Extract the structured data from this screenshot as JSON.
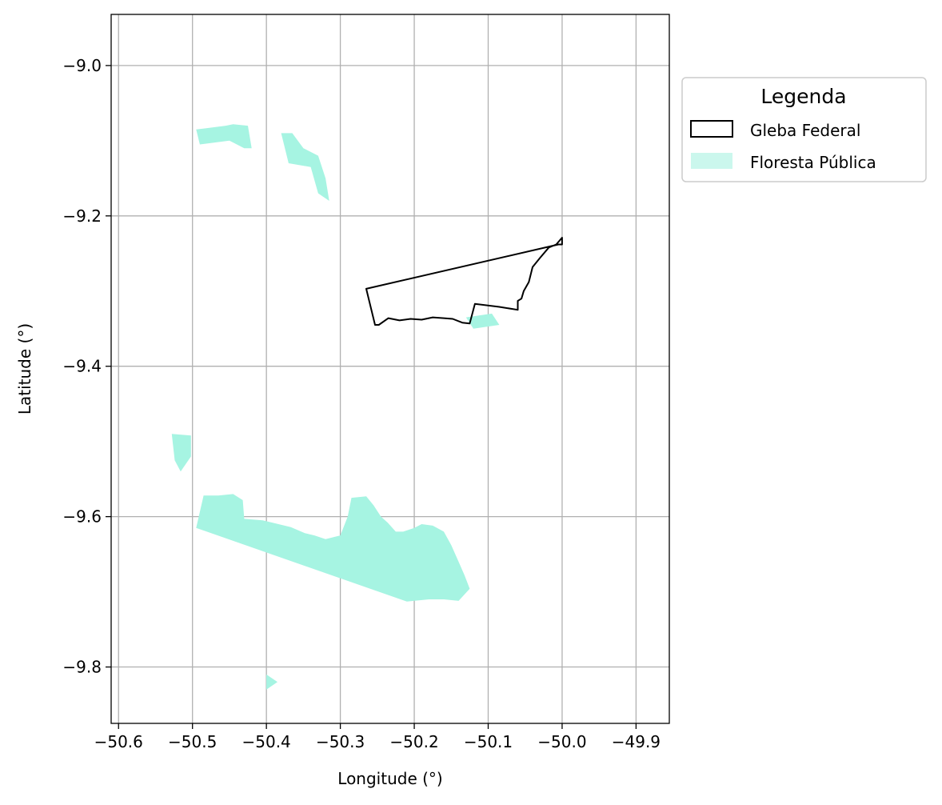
{
  "chart_data": {
    "type": "map",
    "xlabel": "Longitude (°)",
    "ylabel": "Latitude (°)",
    "xlim": [
      -50.61,
      -49.855
    ],
    "ylim": [
      -9.875,
      -8.932
    ],
    "xticks": [
      -50.6,
      -50.5,
      -50.4,
      -50.3,
      -50.2,
      -50.1,
      -50.0,
      -49.9
    ],
    "xtick_labels": [
      "−50.6",
      "−50.5",
      "−50.4",
      "−50.3",
      "−50.2",
      "−50.1",
      "−50.0",
      "−49.9"
    ],
    "yticks": [
      -9.0,
      -9.2,
      -9.4,
      -9.6,
      -9.8
    ],
    "ytick_labels": [
      "−9.0",
      "−9.2",
      "−9.4",
      "−9.6",
      "−9.8"
    ],
    "grid": true,
    "legend": {
      "title": "Legenda",
      "placement": "outside-upper-right",
      "entries": [
        {
          "label": "Gleba Federal",
          "style": "outline",
          "color": "#000000"
        },
        {
          "label": "Floresta Pública",
          "style": "fill",
          "color": "#a6f4e2"
        }
      ]
    },
    "gleba_federal": [
      [
        -50.265,
        -9.297
      ],
      [
        -50.005,
        -9.238
      ],
      [
        -50.0,
        -9.238
      ],
      [
        -50.0,
        -9.229
      ],
      [
        -50.008,
        -9.238
      ],
      [
        -50.018,
        -9.242
      ],
      [
        -50.03,
        -9.256
      ],
      [
        -50.04,
        -9.268
      ],
      [
        -50.045,
        -9.288
      ],
      [
        -50.052,
        -9.3
      ],
      [
        -50.055,
        -9.31
      ],
      [
        -50.06,
        -9.313
      ],
      [
        -50.06,
        -9.325
      ],
      [
        -50.085,
        -9.321
      ],
      [
        -50.118,
        -9.317
      ],
      [
        -50.125,
        -9.343
      ],
      [
        -50.135,
        -9.342
      ],
      [
        -50.148,
        -9.337
      ],
      [
        -50.16,
        -9.336
      ],
      [
        -50.175,
        -9.335
      ],
      [
        -50.19,
        -9.338
      ],
      [
        -50.205,
        -9.337
      ],
      [
        -50.22,
        -9.339
      ],
      [
        -50.235,
        -9.336
      ],
      [
        -50.248,
        -9.345
      ],
      [
        -50.253,
        -9.345
      ],
      [
        -50.265,
        -9.297
      ]
    ],
    "floresta_publica": [
      {
        "name": "large-south-block",
        "coords": [
          [
            -50.495,
            -9.615
          ],
          [
            -50.485,
            -9.572
          ],
          [
            -50.465,
            -9.572
          ],
          [
            -50.445,
            -9.57
          ],
          [
            -50.432,
            -9.578
          ],
          [
            -50.43,
            -9.603
          ],
          [
            -50.405,
            -9.605
          ],
          [
            -50.392,
            -9.608
          ],
          [
            -50.367,
            -9.614
          ],
          [
            -50.348,
            -9.622
          ],
          [
            -50.335,
            -9.625
          ],
          [
            -50.32,
            -9.63
          ],
          [
            -50.3,
            -9.625
          ],
          [
            -50.29,
            -9.6
          ],
          [
            -50.285,
            -9.575
          ],
          [
            -50.265,
            -9.573
          ],
          [
            -50.255,
            -9.585
          ],
          [
            -50.245,
            -9.6
          ],
          [
            -50.236,
            -9.608
          ],
          [
            -50.225,
            -9.62
          ],
          [
            -50.215,
            -9.62
          ],
          [
            -50.2,
            -9.615
          ],
          [
            -50.19,
            -9.61
          ],
          [
            -50.175,
            -9.612
          ],
          [
            -50.16,
            -9.62
          ],
          [
            -50.15,
            -9.638
          ],
          [
            -50.14,
            -9.66
          ],
          [
            -50.132,
            -9.678
          ],
          [
            -50.125,
            -9.696
          ],
          [
            -50.14,
            -9.712
          ],
          [
            -50.16,
            -9.71
          ],
          [
            -50.18,
            -9.71
          ],
          [
            -50.21,
            -9.713
          ],
          [
            -50.495,
            -9.615
          ]
        ]
      },
      {
        "name": "nw-strip",
        "coords": [
          [
            -50.495,
            -9.085
          ],
          [
            -50.455,
            -9.08
          ],
          [
            -50.445,
            -9.078
          ],
          [
            -50.425,
            -9.08
          ],
          [
            -50.42,
            -9.11
          ],
          [
            -50.43,
            -9.11
          ],
          [
            -50.45,
            -9.1
          ],
          [
            -50.49,
            -9.105
          ],
          [
            -50.495,
            -9.085
          ]
        ]
      },
      {
        "name": "north-block",
        "coords": [
          [
            -50.38,
            -9.09
          ],
          [
            -50.365,
            -9.09
          ],
          [
            -50.35,
            -9.11
          ],
          [
            -50.33,
            -9.12
          ],
          [
            -50.32,
            -9.15
          ],
          [
            -50.315,
            -9.18
          ],
          [
            -50.33,
            -9.17
          ],
          [
            -50.34,
            -9.135
          ],
          [
            -50.37,
            -9.13
          ],
          [
            -50.38,
            -9.09
          ]
        ]
      },
      {
        "name": "west-square",
        "coords": [
          [
            -50.528,
            -9.49
          ],
          [
            -50.502,
            -9.492
          ],
          [
            -50.502,
            -9.52
          ],
          [
            -50.516,
            -9.54
          ],
          [
            -50.524,
            -9.525
          ],
          [
            -50.528,
            -9.49
          ]
        ]
      },
      {
        "name": "central-east-piece",
        "coords": [
          [
            -50.13,
            -9.335
          ],
          [
            -50.095,
            -9.33
          ],
          [
            -50.085,
            -9.345
          ],
          [
            -50.12,
            -9.35
          ],
          [
            -50.13,
            -9.335
          ]
        ]
      },
      {
        "name": "se-small",
        "coords": [
          [
            -50.4,
            -9.81
          ],
          [
            -50.385,
            -9.82
          ],
          [
            -50.4,
            -9.83
          ],
          [
            -50.4,
            -9.81
          ]
        ]
      }
    ]
  }
}
